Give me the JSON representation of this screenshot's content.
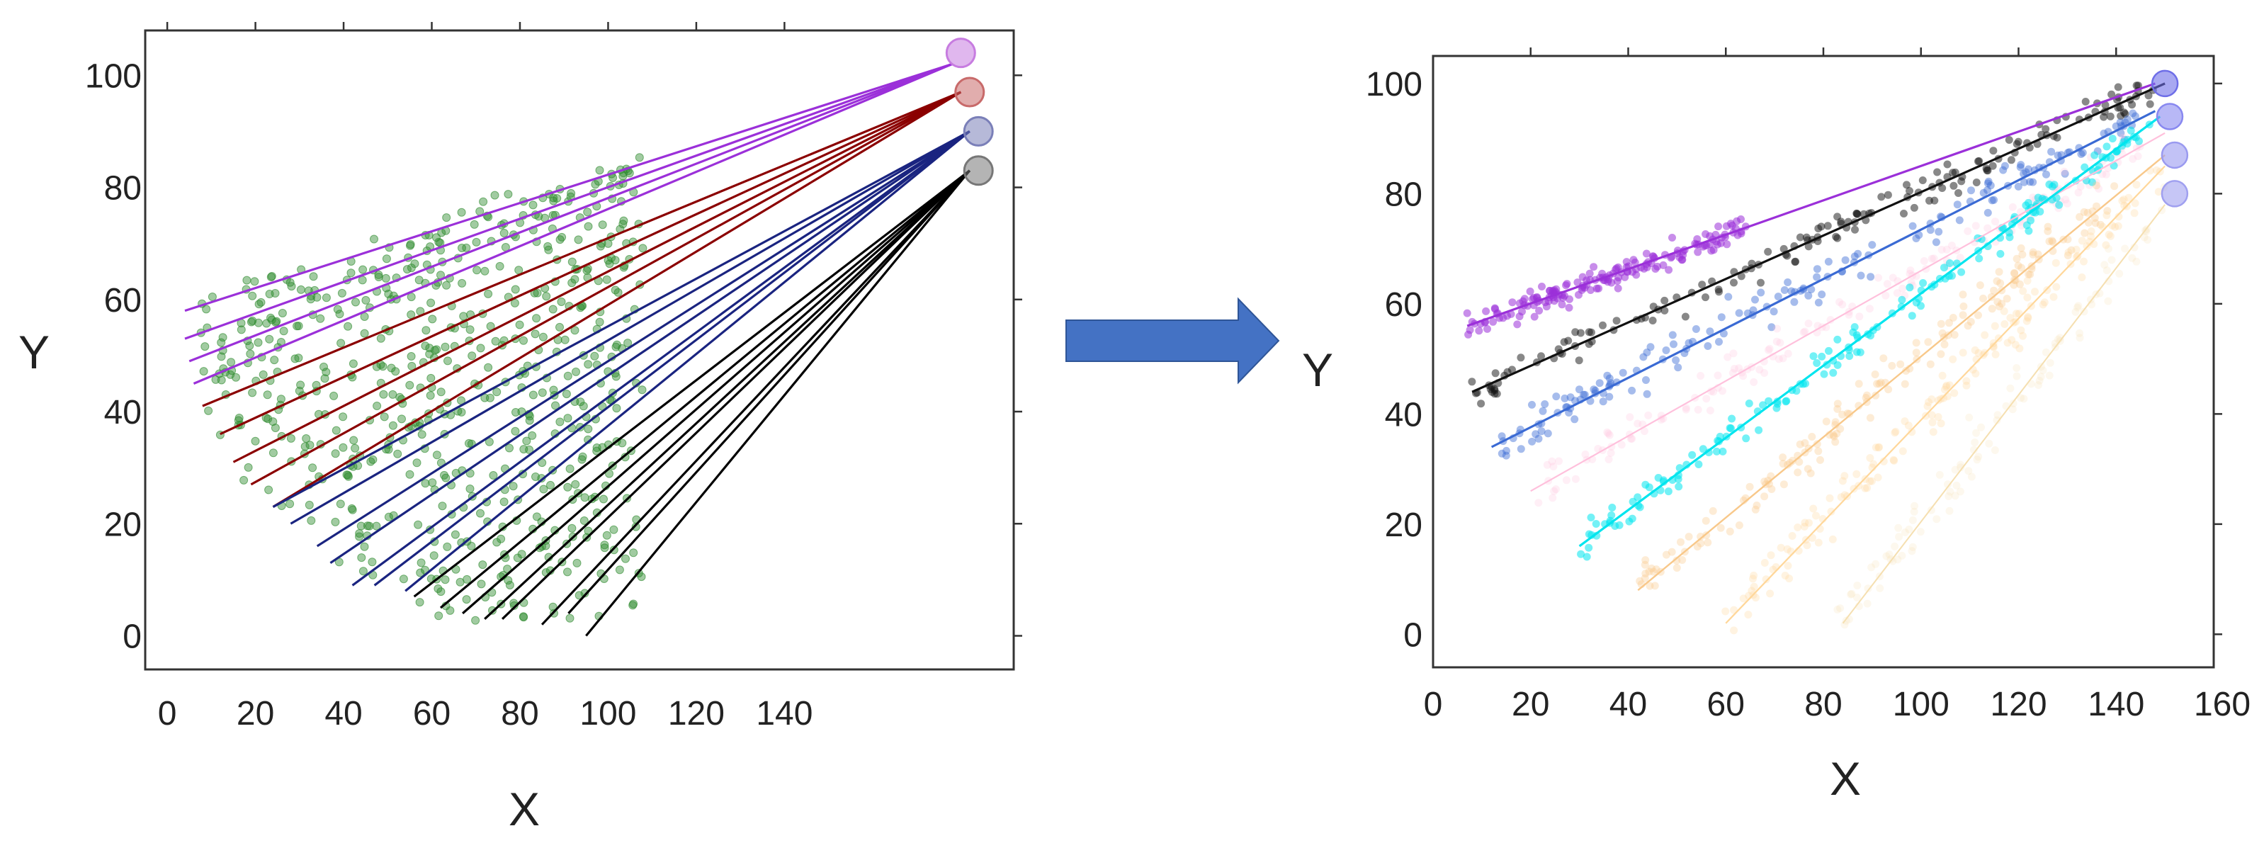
{
  "colors": {
    "arrow": "#4472C4",
    "scatter_left": "#2E8B2E",
    "left_series": [
      "#9B30D9",
      "#8B0000",
      "#1A2480",
      "#000000"
    ],
    "right_series": [
      "#9B30D9",
      "#111111",
      "#3A6AD4",
      "#FFC0DC",
      "#00E5EE",
      "#F8C88A",
      "#FFD79A",
      "#F5DFB0"
    ]
  },
  "chart_data": [
    {
      "type": "line",
      "title": "",
      "xlabel": "X",
      "ylabel": "Y",
      "xlim": [
        -5,
        192
      ],
      "ylim": [
        -6,
        108
      ],
      "xticks": [
        0,
        20,
        40,
        60,
        80,
        100,
        120,
        140
      ],
      "yticks": [
        0,
        20,
        40,
        60,
        80,
        100
      ],
      "grid": false,
      "legend": "none",
      "anchors": [
        {
          "x": 180,
          "y": 104,
          "color": "#C77CE0"
        },
        {
          "x": 182,
          "y": 97,
          "color": "#C86A6A"
        },
        {
          "x": 184,
          "y": 90,
          "color": "#7A7FB8"
        },
        {
          "x": 184,
          "y": 83,
          "color": "#777777"
        }
      ],
      "series": [
        {
          "anchor_x": 178,
          "anchor_y": 102,
          "starts": [
            [
              4,
              58
            ],
            [
              4,
              53
            ],
            [
              5,
              49
            ],
            [
              6,
              45
            ]
          ]
        },
        {
          "anchor_x": 180,
          "anchor_y": 97,
          "starts": [
            [
              8,
              41
            ],
            [
              12,
              36
            ],
            [
              15,
              31
            ],
            [
              19,
              27
            ],
            [
              24,
              23
            ]
          ]
        },
        {
          "anchor_x": 182,
          "anchor_y": 90,
          "starts": [
            [
              24,
              23
            ],
            [
              28,
              20
            ],
            [
              34,
              16
            ],
            [
              37,
              13
            ],
            [
              42,
              9
            ],
            [
              47,
              9
            ],
            [
              54,
              8
            ]
          ]
        },
        {
          "anchor_x": 182,
          "anchor_y": 83,
          "starts": [
            [
              56,
              7
            ],
            [
              62,
              5
            ],
            [
              67,
              4
            ],
            [
              72,
              3
            ],
            [
              76,
              3
            ],
            [
              85,
              2
            ],
            [
              91,
              4
            ],
            [
              95,
              0
            ]
          ]
        }
      ],
      "scatter": {
        "color": "#2E8B2E",
        "x_range": [
          7,
          108
        ],
        "y_range": [
          2,
          104
        ]
      }
    },
    {
      "type": "line",
      "title": "",
      "xlabel": "X",
      "ylabel": "Y",
      "xlim": [
        0,
        160
      ],
      "ylim": [
        -6,
        105
      ],
      "xticks": [
        0,
        20,
        40,
        60,
        80,
        100,
        120,
        140,
        160
      ],
      "yticks": [
        0,
        20,
        40,
        60,
        80,
        100
      ],
      "grid": false,
      "legend": "none",
      "anchors": [
        {
          "x": 150,
          "y": 100,
          "color": "#6E6EE8"
        },
        {
          "x": 151,
          "y": 94,
          "color": "#8888F0"
        },
        {
          "x": 152,
          "y": 87,
          "color": "#9A9AF0"
        },
        {
          "x": 152,
          "y": 80,
          "color": "#A0A0F0"
        }
      ],
      "series": [
        {
          "color": "#9B30D9",
          "width": 3.2,
          "x": [
            7,
            148
          ],
          "y": [
            56,
            100
          ],
          "scatter_x": [
            7,
            65
          ],
          "scatter_spread": 4,
          "alpha": 0.55
        },
        {
          "color": "#111111",
          "width": 3.2,
          "x": [
            8,
            150
          ],
          "y": [
            44,
            100
          ],
          "scatter_x": [
            8,
            150
          ],
          "scatter_spread": 5,
          "alpha": 0.5
        },
        {
          "color": "#3A6AD4",
          "width": 3.2,
          "x": [
            12,
            148
          ],
          "y": [
            34,
            95
          ],
          "scatter_x": [
            14,
            146
          ],
          "scatter_spread": 6,
          "alpha": 0.45
        },
        {
          "color": "#FFC0DC",
          "width": 2.2,
          "x": [
            20,
            150
          ],
          "y": [
            26,
            91
          ],
          "scatter_x": [
            20,
            145
          ],
          "scatter_spread": 6,
          "alpha": 0.25
        },
        {
          "color": "#00E5EE",
          "width": 3.2,
          "x": [
            30,
            149
          ],
          "y": [
            16,
            94
          ],
          "scatter_x": [
            30,
            148
          ],
          "scatter_spread": 5,
          "alpha": 0.55
        },
        {
          "color": "#F8C88A",
          "width": 2.4,
          "x": [
            42,
            150
          ],
          "y": [
            8,
            87
          ],
          "scatter_x": [
            42,
            140
          ],
          "scatter_spread": 7,
          "alpha": 0.35
        },
        {
          "color": "#FFD79A",
          "width": 2.2,
          "x": [
            60,
            150
          ],
          "y": [
            2,
            85
          ],
          "scatter_x": [
            60,
            150
          ],
          "scatter_spread": 8,
          "alpha": 0.3
        },
        {
          "color": "#F5DFB0",
          "width": 2.0,
          "x": [
            84,
            150
          ],
          "y": [
            2,
            78
          ],
          "scatter_x": [
            84,
            150
          ],
          "scatter_spread": 8,
          "alpha": 0.22
        }
      ]
    }
  ]
}
